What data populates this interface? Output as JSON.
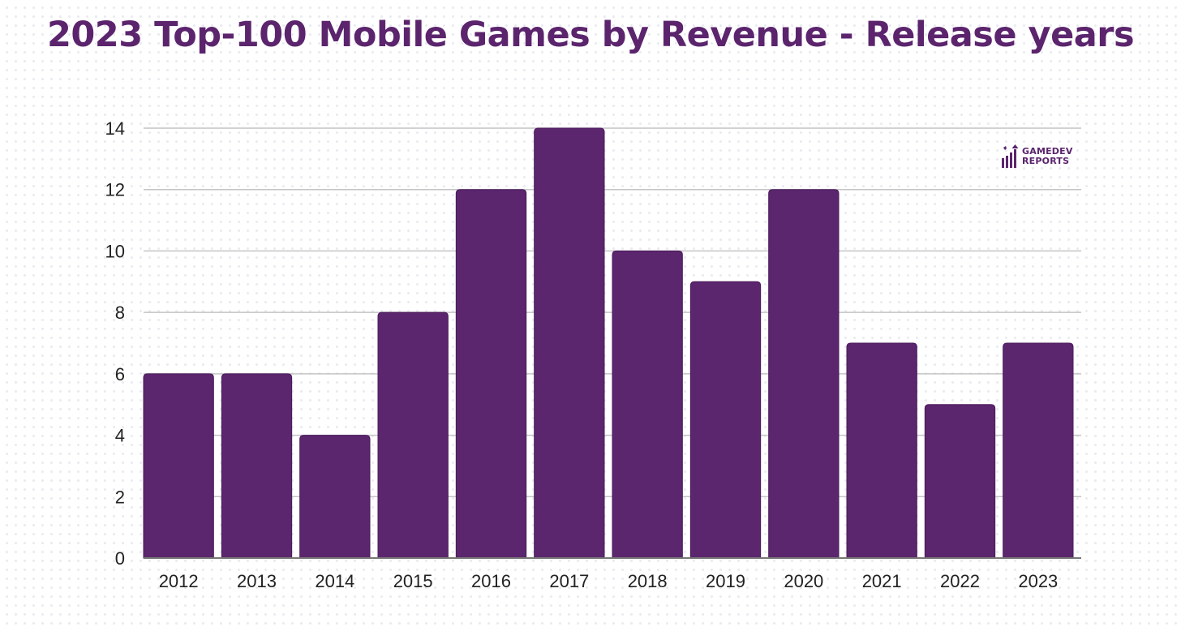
{
  "chart_data": {
    "type": "bar",
    "title": "2023 Top-100 Mobile Games by Revenue - Release years",
    "xlabel": "",
    "ylabel": "",
    "categories": [
      "2012",
      "2013",
      "2014",
      "2015",
      "2016",
      "2017",
      "2018",
      "2019",
      "2020",
      "2021",
      "2022",
      "2023"
    ],
    "values": [
      6,
      6,
      4,
      8,
      12,
      14,
      10,
      9,
      12,
      7,
      5,
      7
    ],
    "ylim": [
      0,
      14
    ],
    "yticks": [
      0,
      2,
      4,
      6,
      8,
      10,
      12,
      14
    ],
    "grid": true,
    "legend": null,
    "bar_color": "#5b266d",
    "title_color": "#5b246d"
  },
  "branding": {
    "logo_line1": "GAMEDEV",
    "logo_line2": "REPORTS"
  }
}
